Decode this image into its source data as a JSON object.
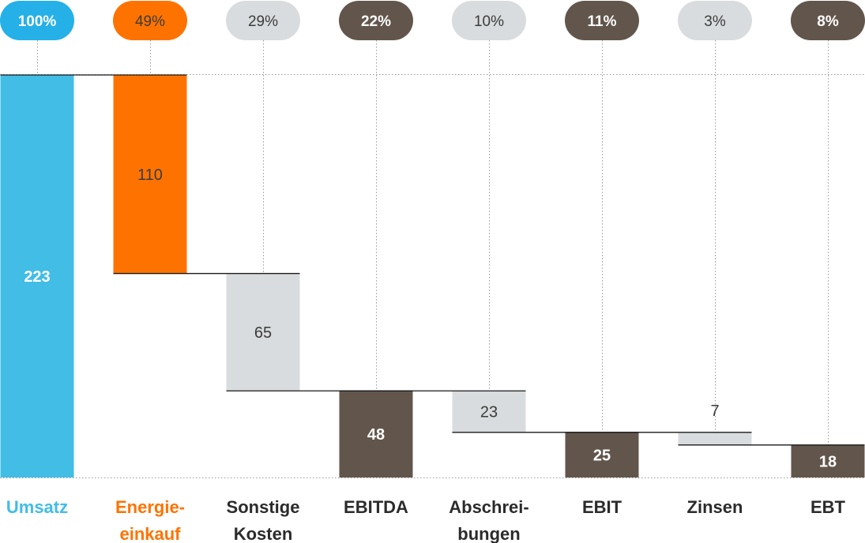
{
  "chart_data": {
    "type": "waterfall",
    "title": "",
    "xlabel": "",
    "ylabel": "",
    "ylim": [
      0,
      223
    ],
    "grid": false,
    "legend": "none",
    "categories": [
      {
        "label": [
          "Umsatz"
        ],
        "value": 223,
        "percent": "100%",
        "kind": "total",
        "color": "#41bde6",
        "label_color": "#41bde6",
        "pill": "#25b0e8",
        "pill_text": "#ffffff",
        "bold": true,
        "value_color": "#ffffff"
      },
      {
        "label": [
          "Energie-",
          "einkauf"
        ],
        "value": 110,
        "percent": "49%",
        "kind": "decrease",
        "color": "#fe7300",
        "label_color": "#fe7300",
        "pill": "#fe7300",
        "pill_text": "#3b3b3b",
        "bold": false,
        "value_color": "#3b3b3b"
      },
      {
        "label": [
          "Sonstige",
          "Kosten"
        ],
        "value": 65,
        "percent": "29%",
        "kind": "decrease",
        "color": "#d9dcde",
        "label_color": "#2b2b2b",
        "pill": "#d9dcde",
        "pill_text": "#3b3b3b",
        "bold": false,
        "value_color": "#3b3b3b"
      },
      {
        "label": [
          "EBITDA"
        ],
        "value": 48,
        "percent": "22%",
        "kind": "total",
        "color": "#62564c",
        "label_color": "#2b2b2b",
        "pill": "#62564c",
        "pill_text": "#ffffff",
        "bold": true,
        "value_color": "#ffffff"
      },
      {
        "label": [
          "Abschrei-",
          "bungen"
        ],
        "value": 23,
        "percent": "10%",
        "kind": "decrease",
        "color": "#d9dcde",
        "label_color": "#2b2b2b",
        "pill": "#d9dcde",
        "pill_text": "#3b3b3b",
        "bold": false,
        "value_color": "#3b3b3b"
      },
      {
        "label": [
          "EBIT"
        ],
        "value": 25,
        "percent": "11%",
        "kind": "total",
        "color": "#62564c",
        "label_color": "#2b2b2b",
        "pill": "#62564c",
        "pill_text": "#ffffff",
        "bold": true,
        "value_color": "#ffffff"
      },
      {
        "label": [
          "Zinsen"
        ],
        "value": 7,
        "percent": "3%",
        "kind": "decrease",
        "color": "#d9dcde",
        "label_color": "#2b2b2b",
        "pill": "#d9dcde",
        "pill_text": "#3b3b3b",
        "bold": false,
        "value_color": "#3b3b3b"
      },
      {
        "label": [
          "EBT"
        ],
        "value": 18,
        "percent": "8%",
        "kind": "total",
        "color": "#62564c",
        "label_color": "#2b2b2b",
        "pill": "#62564c",
        "pill_text": "#ffffff",
        "bold": true,
        "value_color": "#ffffff"
      }
    ]
  }
}
